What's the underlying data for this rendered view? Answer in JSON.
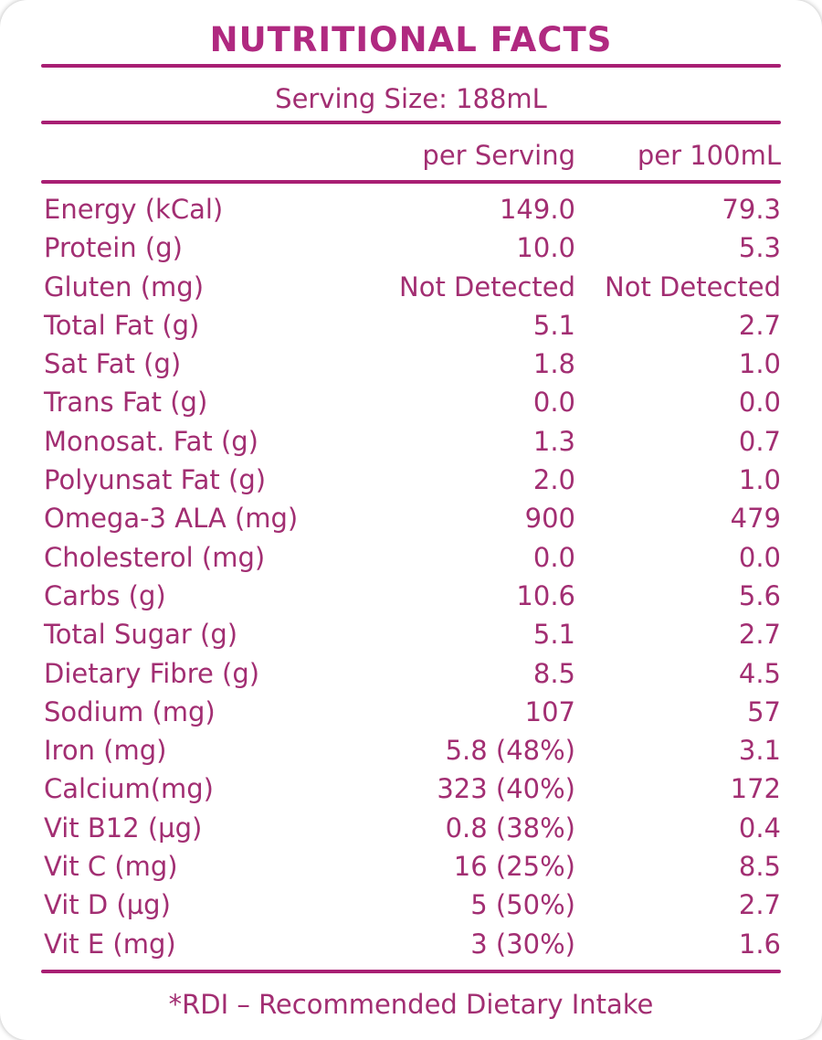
{
  "title": "NUTRITIONAL FACTS",
  "serving_size": "Serving Size: 188mL",
  "columns": {
    "per_serving": "per Serving",
    "per_100ml": "per 100mL"
  },
  "rows": [
    {
      "label": "Energy (kCal)",
      "per_serving": "149.0",
      "per_100ml": "79.3"
    },
    {
      "label": "Protein (g)",
      "per_serving": "10.0",
      "per_100ml": "5.3"
    },
    {
      "label": "Gluten (mg)",
      "per_serving": "Not Detected",
      "per_100ml": "Not Detected"
    },
    {
      "label": "Total Fat (g)",
      "per_serving": "5.1",
      "per_100ml": "2.7"
    },
    {
      "label": "Sat Fat (g)",
      "per_serving": "1.8",
      "per_100ml": "1.0"
    },
    {
      "label": "Trans Fat (g)",
      "per_serving": "0.0",
      "per_100ml": "0.0"
    },
    {
      "label": "Monosat. Fat (g)",
      "per_serving": "1.3",
      "per_100ml": "0.7"
    },
    {
      "label": "Polyunsat Fat (g)",
      "per_serving": "2.0",
      "per_100ml": "1.0"
    },
    {
      "label": "Omega-3 ALA (mg)",
      "per_serving": "900",
      "per_100ml": "479"
    },
    {
      "label": "Cholesterol (mg)",
      "per_serving": "0.0",
      "per_100ml": "0.0"
    },
    {
      "label": "Carbs (g)",
      "per_serving": "10.6",
      "per_100ml": "5.6"
    },
    {
      "label": "Total Sugar (g)",
      "per_serving": "5.1",
      "per_100ml": "2.7"
    },
    {
      "label": "Dietary Fibre (g)",
      "per_serving": "8.5",
      "per_100ml": "4.5"
    },
    {
      "label": "Sodium (mg)",
      "per_serving": "107",
      "per_100ml": "57"
    },
    {
      "label": "Iron (mg)",
      "per_serving": "5.8 (48%)",
      "per_100ml": "3.1"
    },
    {
      "label": "Calcium(mg)",
      "per_serving": "323 (40%)",
      "per_100ml": "172"
    },
    {
      "label": "Vit B12 (µg)",
      "per_serving": "0.8 (38%)",
      "per_100ml": "0.4"
    },
    {
      "label": "Vit C (mg)",
      "per_serving": "16 (25%)",
      "per_100ml": "8.5"
    },
    {
      "label": "Vit D (µg)",
      "per_serving": "5 (50%)",
      "per_100ml": "2.7"
    },
    {
      "label": "Vit E (mg)",
      "per_serving": "3 (30%)",
      "per_100ml": "1.6"
    }
  ],
  "footnote": "*RDI – Recommended Dietary Intake",
  "colors": {
    "accent": "#a81f73",
    "title": "#b02980",
    "text": "#a22e72"
  }
}
